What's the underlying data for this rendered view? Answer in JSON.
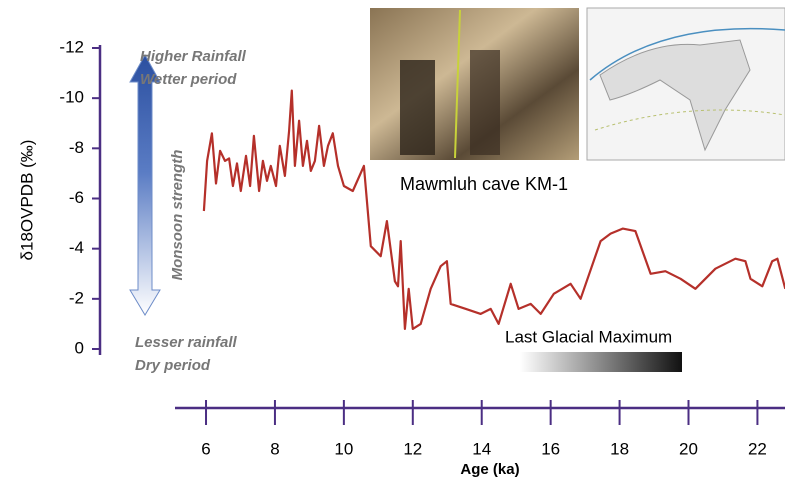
{
  "chart_data": {
    "type": "line",
    "ylabel": "δ18OVPDB (‰)",
    "xlabel": "Age (ka)",
    "annotations": [
      "Higher Rainfall",
      "Wetter period",
      "Monsoon strength",
      "Lesser rainfall",
      "Dry period",
      "Mawmluh cave KM-1",
      "Last Glacial Maximum"
    ],
    "color": "#b5302a",
    "x": [
      5.94,
      6.03,
      6.17,
      6.29,
      6.41,
      6.55,
      6.67,
      6.78,
      6.9,
      7.01,
      7.16,
      7.28,
      7.39,
      7.54,
      7.65,
      7.77,
      7.88,
      8.03,
      8.14,
      8.29,
      8.41,
      8.49,
      8.58,
      8.7,
      8.81,
      8.93,
      9.04,
      9.16,
      9.28,
      9.42,
      9.54,
      9.68,
      9.83,
      10.0,
      10.26,
      10.58,
      10.78,
      11.07,
      11.25,
      11.48,
      11.57,
      11.65,
      11.77,
      11.88,
      12.0,
      12.23,
      12.52,
      12.81,
      12.99,
      13.1,
      13.54,
      13.97,
      14.26,
      14.49,
      14.84,
      15.07,
      15.42,
      15.71,
      16.09,
      16.58,
      16.87,
      17.45,
      17.74,
      18.09,
      18.46,
      18.9,
      19.33,
      19.77,
      20.2,
      20.78,
      21.36,
      21.65,
      21.8,
      22.14,
      22.43,
      22.58,
      22.81
    ],
    "values": [
      -5.5,
      -7.5,
      -8.6,
      -6.6,
      -7.9,
      -7.5,
      -7.6,
      -6.5,
      -7.4,
      -6.3,
      -7.7,
      -6.5,
      -8.5,
      -6.3,
      -7.5,
      -6.7,
      -7.3,
      -6.5,
      -8.1,
      -6.9,
      -8.7,
      -10.3,
      -7.3,
      -9.1,
      -7.3,
      -8.3,
      -7.1,
      -7.5,
      -8.9,
      -7.3,
      -8.1,
      -8.6,
      -7.3,
      -6.5,
      -6.3,
      -7.3,
      -4.1,
      -3.7,
      -5.1,
      -2.7,
      -2.5,
      -4.3,
      -0.8,
      -2.4,
      -0.8,
      -1.0,
      -2.4,
      -3.3,
      -3.5,
      -1.8,
      -1.6,
      -1.4,
      -1.6,
      -1.0,
      -2.6,
      -1.6,
      -1.8,
      -1.4,
      -2.2,
      -2.6,
      -2.0,
      -4.3,
      -4.6,
      -4.8,
      -4.7,
      -3.0,
      -3.1,
      -2.8,
      -2.4,
      -3.2,
      -3.6,
      -3.5,
      -2.8,
      -2.5,
      -3.5,
      -3.6,
      -2.4
    ],
    "xlim": [
      5.1,
      22.8
    ],
    "xticks": [
      6,
      8,
      10,
      12,
      14,
      16,
      18,
      20,
      22
    ],
    "ylim": [
      0,
      -12
    ],
    "yticks": [
      -12,
      -10,
      -8,
      -6,
      -4,
      -2,
      0
    ]
  }
}
